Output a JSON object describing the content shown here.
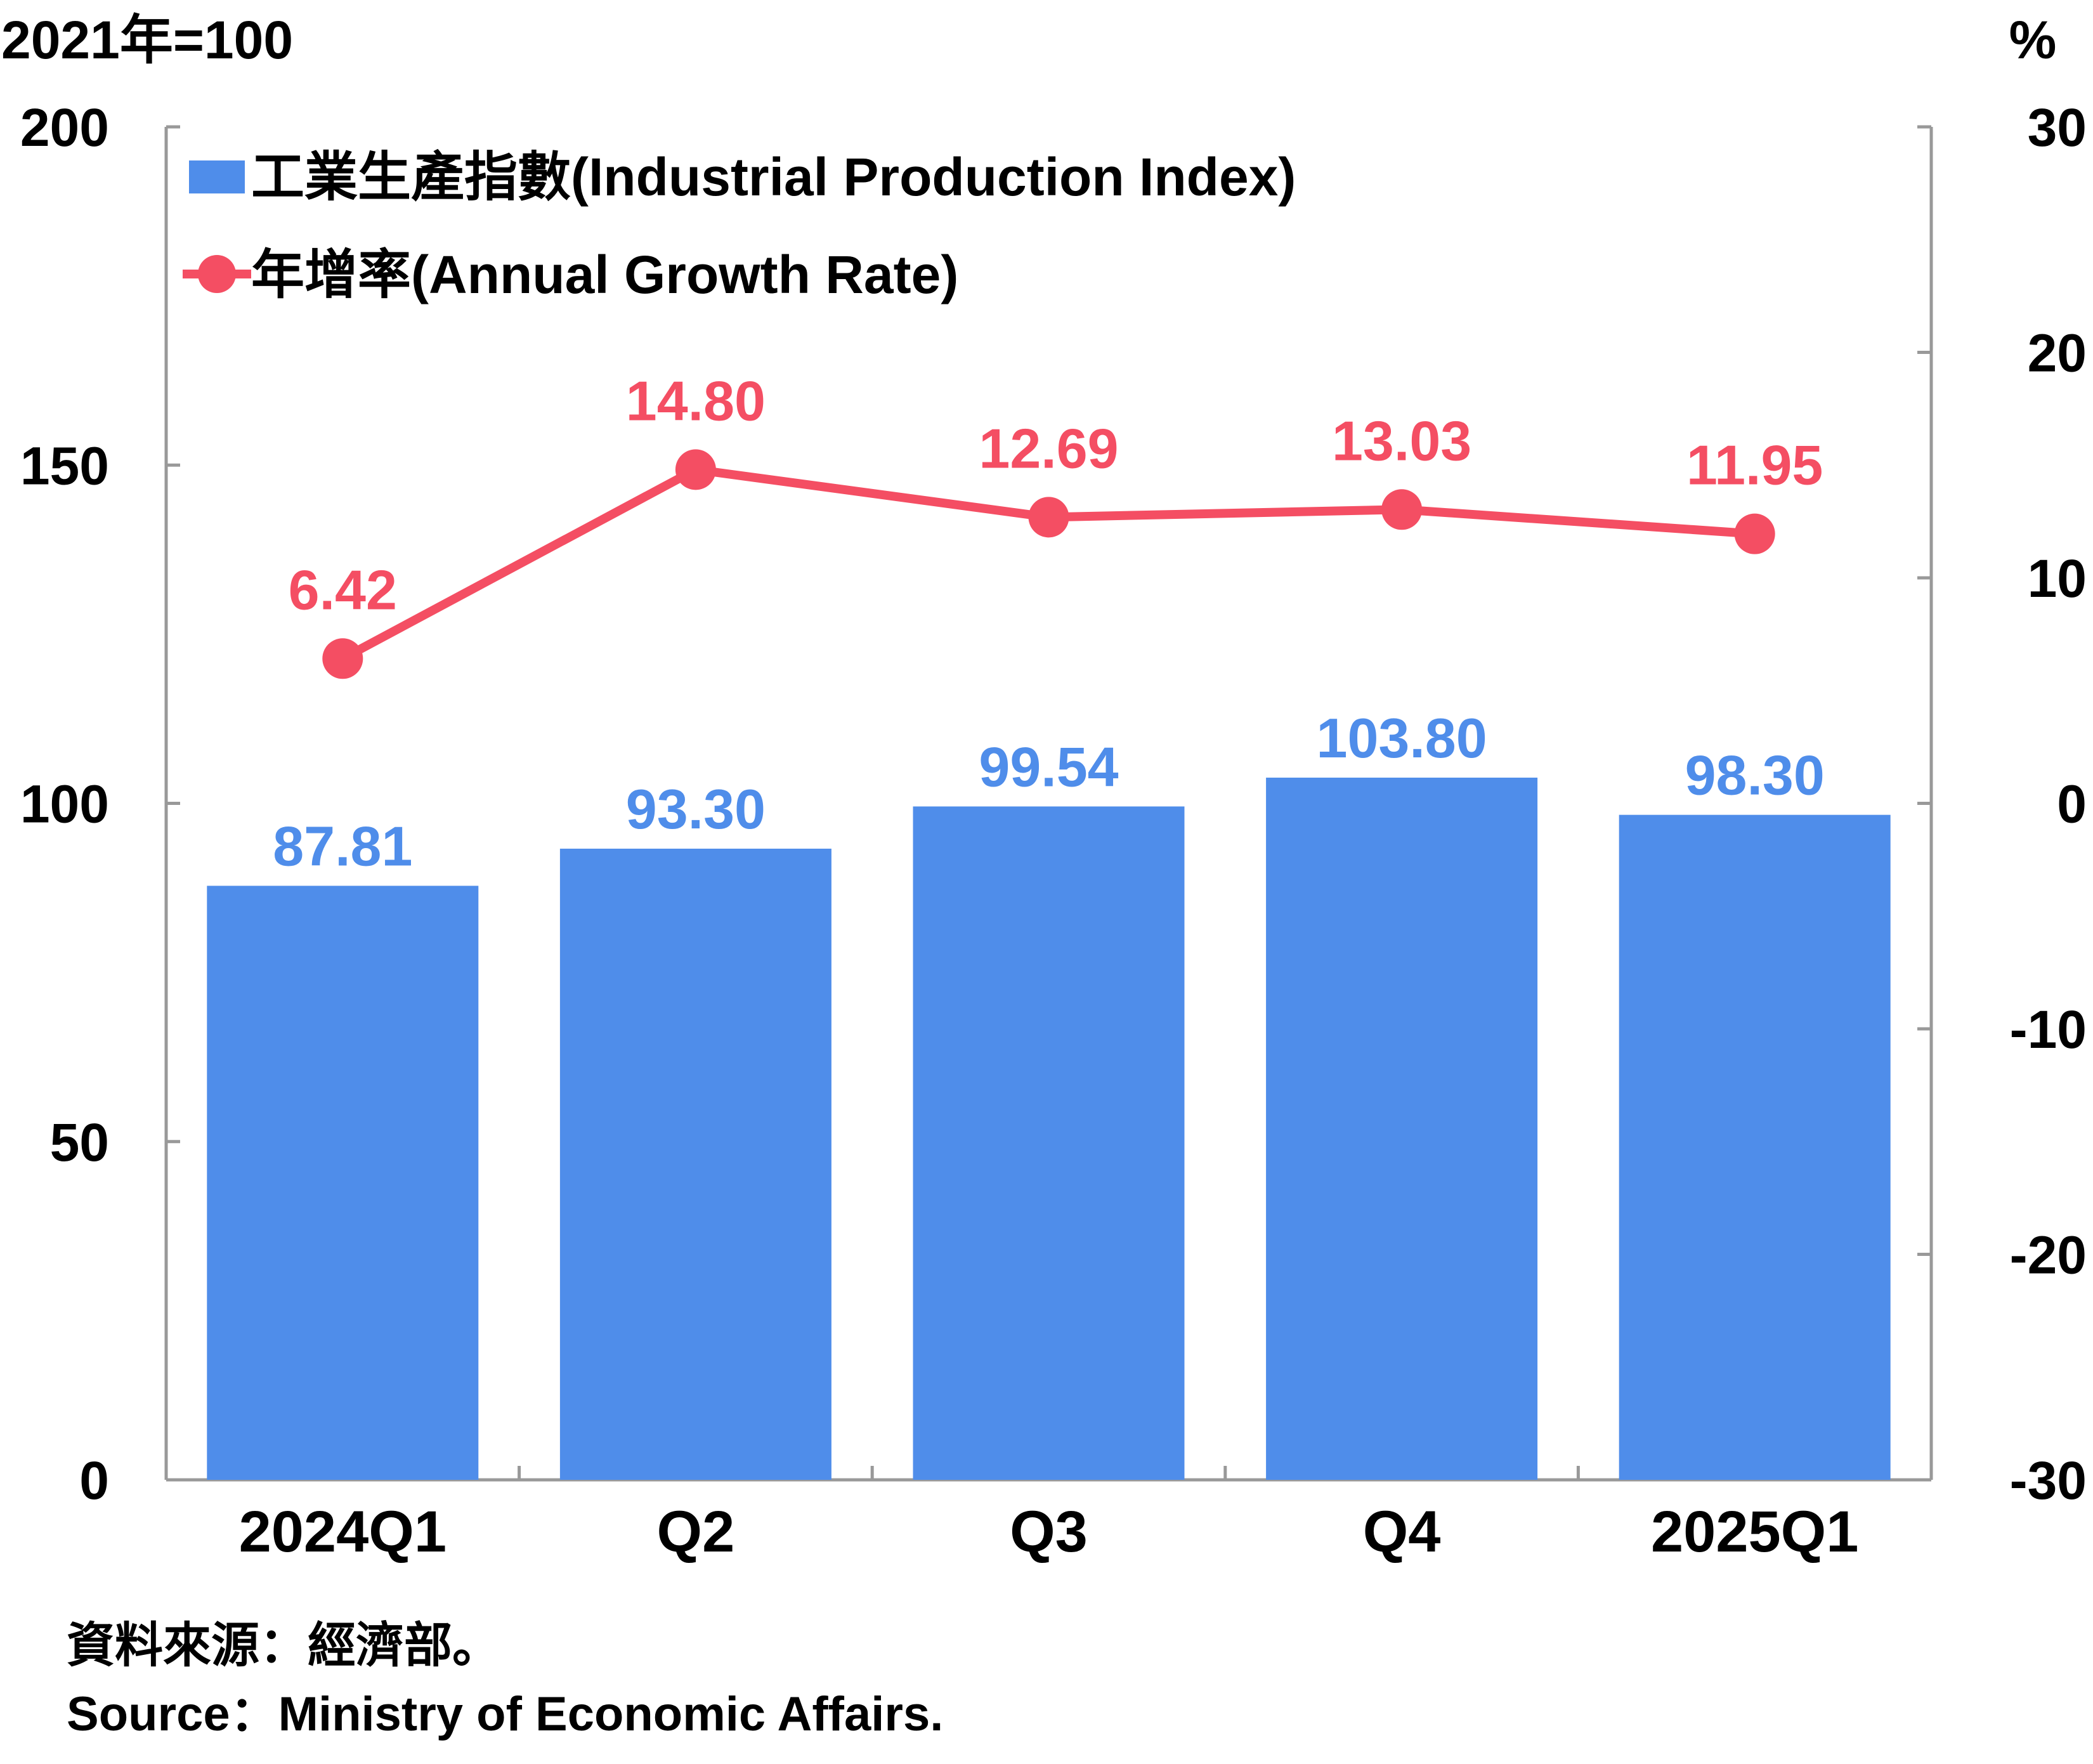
{
  "chart_data": {
    "type": "bar+line",
    "categories": [
      "2024Q1",
      "Q2",
      "Q3",
      "Q4",
      "2025Q1"
    ],
    "series": [
      {
        "name": "工業生產指數(Industrial Production Index)",
        "type": "bar",
        "axis": "left",
        "color": "#4f8dea",
        "values": [
          87.81,
          93.3,
          99.54,
          103.8,
          98.3
        ],
        "labels": [
          "87.81",
          "93.30",
          "99.54",
          "103.80",
          "98.30"
        ]
      },
      {
        "name": "年增率(Annual Growth Rate)",
        "type": "line",
        "axis": "right",
        "color": "#f44e63",
        "values": [
          6.42,
          14.8,
          12.69,
          13.03,
          11.95
        ],
        "labels": [
          "6.42",
          "14.80",
          "12.69",
          "13.03",
          "11.95"
        ]
      }
    ],
    "left_axis": {
      "unit_label": "2021年=100",
      "range": [
        0,
        200
      ],
      "ticks": [
        0,
        50,
        100,
        150,
        200
      ],
      "tick_labels": [
        "0",
        "50",
        "100",
        "150",
        "200"
      ]
    },
    "right_axis": {
      "unit_label": "%",
      "range": [
        -30,
        30
      ],
      "ticks": [
        -30,
        -20,
        -10,
        0,
        10,
        20,
        30
      ],
      "tick_labels": [
        "-30",
        "-20",
        "-10",
        "0",
        "10",
        "20",
        "30"
      ]
    },
    "legend_position": "top-left",
    "grid": false
  },
  "source": {
    "zh": "資料來源：經濟部。",
    "en": "Source：Ministry of Economic Affairs."
  },
  "colors": {
    "axis": "#999999",
    "bar": "#4f8dea",
    "line": "#f44e63"
  }
}
